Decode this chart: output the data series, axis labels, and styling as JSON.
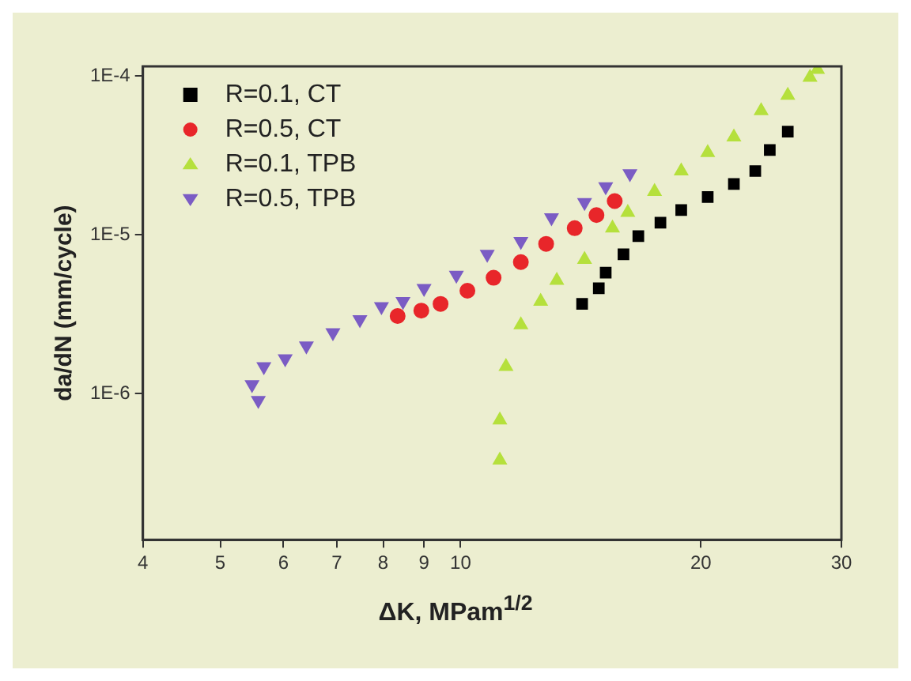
{
  "chart_data": {
    "type": "scatter",
    "xlabel": "ΔK, MPam$^{1/2}$",
    "ylabel": "da/dN (mm/cycle)",
    "log": "xy",
    "legend": "top left",
    "xlim": [
      4,
      30
    ],
    "xticks": [
      4,
      5,
      6,
      7,
      8,
      9,
      10,
      20,
      30
    ],
    "ylim": [
      1.2e-07,
      0.000115
    ],
    "yticks": [
      {
        "value": 1e-06,
        "label": "1E-6"
      },
      {
        "value": 1e-05,
        "label": "1E-5"
      },
      {
        "value": 0.0001,
        "label": "1E-4"
      }
    ],
    "series": [
      {
        "name": "R=0.1, CT",
        "color": "#000000",
        "marker": "square",
        "x": [
          14.2,
          14.9,
          15.2,
          16.0,
          16.7,
          17.8,
          18.9,
          20.4,
          22.0,
          23.4,
          24.4,
          25.7
        ],
        "values": [
          3.67e-06,
          4.6e-06,
          5.78e-06,
          7.54e-06,
          9.8e-06,
          1.19e-05,
          1.43e-05,
          1.73e-05,
          2.09e-05,
          2.52e-05,
          3.42e-05,
          4.46e-05
        ]
      },
      {
        "name": "R=0.5, CT",
        "color": "#e8262a",
        "marker": "circle",
        "x": [
          8.34,
          8.93,
          9.44,
          10.2,
          11.0,
          11.9,
          12.8,
          13.9,
          14.8,
          15.6
        ],
        "values": [
          3.08e-06,
          3.33e-06,
          3.67e-06,
          4.44e-06,
          5.36e-06,
          6.73e-06,
          8.77e-06,
          1.1e-05,
          1.33e-05,
          1.63e-05
        ]
      },
      {
        "name": "R=0.1, TPB",
        "color": "#b5e03c",
        "marker": "triangle",
        "x": [
          11.2,
          11.2,
          11.4,
          11.9,
          12.6,
          13.2,
          14.3,
          15.5,
          16.2,
          17.5,
          18.9,
          20.4,
          22.0,
          23.8,
          25.7,
          27.4,
          28.0
        ],
        "values": [
          3.8e-07,
          6.8e-07,
          1.48e-06,
          2.71e-06,
          3.81e-06,
          5.16e-06,
          6.98e-06,
          1.1e-05,
          1.38e-05,
          1.87e-05,
          2.52e-05,
          3.29e-05,
          4.13e-05,
          6.03e-05,
          7.55e-05,
          9.8e-05,
          0.00011
        ]
      },
      {
        "name": "R=0.5, TPB",
        "color": "#7b5cc4",
        "marker": "triangle-down",
        "x": [
          5.58,
          5.48,
          5.67,
          6.03,
          6.41,
          6.92,
          7.48,
          7.96,
          8.47,
          9.0,
          9.88,
          10.8,
          11.9,
          13.0,
          14.3,
          15.2,
          16.3
        ],
        "values": [
          9.06e-07,
          1.14e-06,
          1.48e-06,
          1.66e-06,
          2e-06,
          2.42e-06,
          2.92e-06,
          3.53e-06,
          3.81e-06,
          4.6e-06,
          5.57e-06,
          7.54e-06,
          9.1e-06,
          1.28e-05,
          1.6e-05,
          2.01e-05,
          2.43e-05
        ]
      }
    ]
  }
}
